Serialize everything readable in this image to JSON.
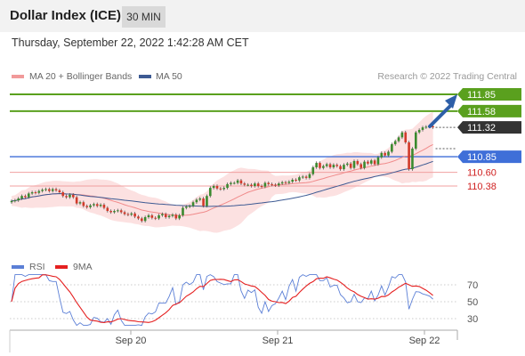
{
  "header": {
    "title": "Dollar Index (ICE)",
    "timeframe": "30 MIN",
    "datetime": "Thursday, September 22, 2022 1:42:28 AM CET"
  },
  "legend": {
    "ma20": "MA 20 + Bollinger Bands",
    "ma50": "MA 50",
    "credit": "Research © 2022 Trading Central"
  },
  "rsi_legend": {
    "rsi": "RSI",
    "ma": "9MA"
  },
  "colors": {
    "green": "#5aa01e",
    "blue": "#3f6fd8",
    "red": "#e06060",
    "dark": "#333333",
    "arrow": "#2e5fa8",
    "candle_up": "#3a8a2e",
    "candle_down": "#d23a2a"
  },
  "chart_data": {
    "type": "candlestick",
    "x_ticks": [
      "Sep 20",
      "Sep 21",
      "Sep 22"
    ],
    "y_min": 109.3,
    "y_max": 111.95,
    "levels": [
      {
        "label": "111.85",
        "value": 111.85,
        "kind": "resistance"
      },
      {
        "label": "111.58",
        "value": 111.58,
        "kind": "resistance"
      },
      {
        "label": "111.32",
        "value": 111.32,
        "kind": "last"
      },
      {
        "label": "110.85",
        "value": 110.85,
        "kind": "pivot"
      },
      {
        "label": "110.60",
        "value": 110.6,
        "kind": "support"
      },
      {
        "label": "110.38",
        "value": 110.38,
        "kind": "support"
      }
    ],
    "close": [
      110.14,
      110.15,
      110.18,
      110.22,
      110.2,
      110.26,
      110.28,
      110.27,
      110.3,
      110.32,
      110.33,
      110.3,
      110.33,
      110.31,
      110.28,
      110.22,
      110.2,
      110.24,
      110.2,
      110.1,
      110.12,
      110.06,
      110.04,
      110.07,
      110.09,
      110.06,
      110.08,
      110.03,
      109.98,
      109.96,
      109.98,
      109.99,
      109.96,
      109.93,
      109.92,
      109.94,
      109.89,
      109.86,
      109.82,
      109.88,
      109.91,
      109.87,
      109.86,
      109.91,
      109.93,
      109.88,
      109.9,
      109.92,
      109.86,
      109.91,
      110.03,
      110.05,
      110.06,
      110.12,
      110.16,
      110.18,
      110.06,
      110.22,
      110.35,
      110.38,
      110.34,
      110.33,
      110.35,
      110.41,
      110.43,
      110.43,
      110.47,
      110.42,
      110.4,
      110.4,
      110.38,
      110.42,
      110.38,
      110.37,
      110.43,
      110.41,
      110.4,
      110.39,
      110.42,
      110.44,
      110.43,
      110.45,
      110.48,
      110.47,
      110.52,
      110.53,
      110.51,
      110.57,
      110.68,
      110.75,
      110.67,
      110.7,
      110.73,
      110.68,
      110.72,
      110.7,
      110.65,
      110.72,
      110.74,
      110.67,
      110.78,
      110.73,
      110.67,
      110.77,
      110.74,
      110.79,
      110.73,
      110.84,
      110.91,
      110.87,
      110.93,
      111.05,
      111.1,
      111.16,
      111.24,
      111.08,
      110.65,
      110.98,
      111.24,
      111.28,
      111.32,
      111.33,
      111.34,
      111.32
    ],
    "rsi_axis": [
      70,
      50,
      30
    ]
  }
}
